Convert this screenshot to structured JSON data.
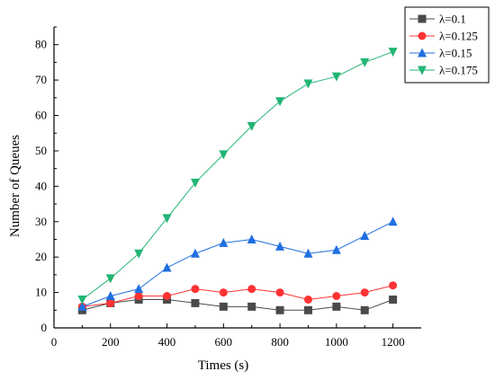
{
  "chart_data": {
    "type": "line",
    "xlabel": "Times (s)",
    "ylabel": "Number of Queues",
    "xlim": [
      0,
      1300
    ],
    "ylim": [
      0,
      85
    ],
    "xticks": [
      0,
      200,
      400,
      600,
      800,
      1000,
      1200
    ],
    "yticks": [
      0,
      10,
      20,
      30,
      40,
      50,
      60,
      70,
      80
    ],
    "x": [
      100,
      200,
      300,
      400,
      500,
      600,
      700,
      800,
      900,
      1000,
      1100,
      1200
    ],
    "legend_position": "top-right",
    "grid": false,
    "series": [
      {
        "name": "λ=0.1",
        "color": "#4a4a4a",
        "marker": "square",
        "values": [
          5,
          7,
          8,
          8,
          7,
          6,
          6,
          5,
          5,
          6,
          5,
          8
        ]
      },
      {
        "name": "λ=0.125",
        "color": "#ff3333",
        "marker": "circle",
        "values": [
          6,
          7,
          9,
          9,
          11,
          10,
          11,
          10,
          8,
          9,
          10,
          12
        ]
      },
      {
        "name": "λ=0.15",
        "color": "#1f6fe0",
        "marker": "triangle-up",
        "values": [
          6,
          9,
          11,
          17,
          21,
          24,
          25,
          23,
          21,
          22,
          26,
          30
        ]
      },
      {
        "name": "λ=0.175",
        "color": "#22b573",
        "marker": "triangle-down",
        "values": [
          8,
          14,
          21,
          31,
          41,
          49,
          57,
          64,
          69,
          71,
          75,
          78
        ]
      }
    ]
  }
}
